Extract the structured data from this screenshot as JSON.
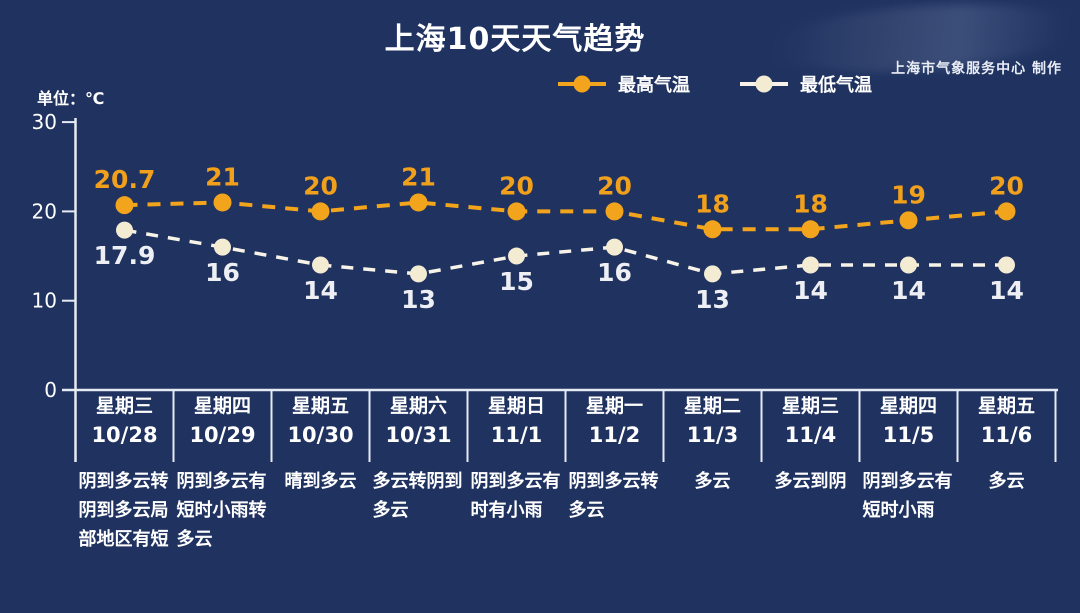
{
  "page": {
    "title": "上海10天天气趋势",
    "credit": "上海市气象服务中心 制作",
    "unit_label": "单位：℃"
  },
  "colors": {
    "background": "#1F3260",
    "axis": "#E6EAF2",
    "text": "#FFFFFF",
    "max_series": "#F2A41D",
    "min_series": "#F7F3E8"
  },
  "chart_data": {
    "type": "line",
    "title": "上海10天天气趋势",
    "ylabel": "单位：℃",
    "ylim": [
      0,
      30
    ],
    "yticks": [
      0,
      10,
      20,
      30
    ],
    "grid": false,
    "legend_position": "top-center",
    "line_style": "dashed",
    "categories": [
      {
        "day": "星期三",
        "date": "10/28",
        "weather": "阴到多云转阴到多云局部地区有短"
      },
      {
        "day": "星期四",
        "date": "10/29",
        "weather": "阴到多云有短时小雨转多云"
      },
      {
        "day": "星期五",
        "date": "10/30",
        "weather": "晴到多云"
      },
      {
        "day": "星期六",
        "date": "10/31",
        "weather": "多云转阴到多云"
      },
      {
        "day": "星期日",
        "date": "11/1",
        "weather": "阴到多云有时有小雨"
      },
      {
        "day": "星期一",
        "date": "11/2",
        "weather": "阴到多云转多云"
      },
      {
        "day": "星期二",
        "date": "11/3",
        "weather": "多云"
      },
      {
        "day": "星期三",
        "date": "11/4",
        "weather": "多云到阴"
      },
      {
        "day": "星期四",
        "date": "11/5",
        "weather": "阴到多云有短时小雨"
      },
      {
        "day": "星期五",
        "date": "11/6",
        "weather": "多云"
      }
    ],
    "series": [
      {
        "name": "最高气温",
        "color": "#F2A41D",
        "dot_color": "#F2A41D",
        "label_color": "#F1A01B",
        "label_position": "above",
        "values": [
          20.7,
          21,
          20,
          21,
          20,
          20,
          18,
          18,
          19,
          20
        ]
      },
      {
        "name": "最低气温",
        "color": "#F7F3E8",
        "dot_color": "#F4EBD3",
        "label_color": "#EDEFF4",
        "label_position": "below",
        "values": [
          17.9,
          16,
          14,
          13,
          15,
          16,
          13,
          14,
          14,
          14
        ]
      }
    ]
  }
}
